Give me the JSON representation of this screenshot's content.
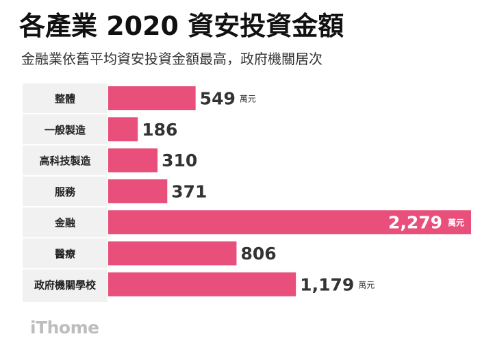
{
  "header": {
    "title": "各產業 2020 資安投資金額",
    "subtitle": "金融業依舊平均資安投資金額最高，政府機關居次"
  },
  "colors": {
    "bar": "#E8507B",
    "label_bg": "#F1F1F1",
    "label_divider": "#FFFFFF",
    "value_text": "#333333",
    "inside_value_text": "#FFFFFF",
    "logo": "#BDBDBD"
  },
  "chart_data": {
    "type": "bar",
    "orientation": "horizontal",
    "categories": [
      "整體",
      "一般製造",
      "高科技製造",
      "服務",
      "金融",
      "醫療",
      "政府機關學校"
    ],
    "values": [
      549,
      186,
      310,
      371,
      2279,
      806,
      1179
    ],
    "value_labels": [
      "549",
      "186",
      "310",
      "371",
      "2,279",
      "806",
      "1,179"
    ],
    "unit_labels": [
      "萬元",
      "",
      "",
      "",
      "萬元",
      "",
      "萬元"
    ],
    "xlim": [
      0,
      2279
    ],
    "grid": false,
    "legend": "none"
  },
  "brand": {
    "logo_text": "iThome"
  }
}
